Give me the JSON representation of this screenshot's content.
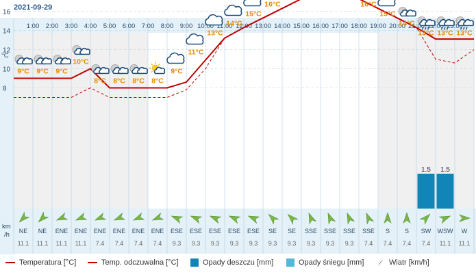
{
  "date": "2021-09-29",
  "chart_data": {
    "type": "line",
    "hours": [
      "1:00",
      "2:00",
      "3:00",
      "4:00",
      "5:00",
      "6:00",
      "7:00",
      "8:00",
      "9:00",
      "10:00",
      "11:00",
      "12:00",
      "13:00",
      "14:00",
      "15:00",
      "16:00",
      "17:00",
      "18:00",
      "19:00",
      "20:00",
      "21:00",
      "22:00",
      "23:00"
    ],
    "y_unit": "°C",
    "y_ticks": [
      8,
      10,
      12,
      14,
      16,
      18
    ],
    "ylim": [
      6.4,
      20.4
    ],
    "series": [
      {
        "name": "Temperatura [°C]",
        "color": "#c00000",
        "style": "solid",
        "x": [
          0,
          1,
          2,
          3,
          4,
          5,
          6,
          7,
          8,
          9,
          10,
          11,
          12,
          13,
          14,
          15,
          16,
          17,
          18,
          19,
          20,
          21,
          22,
          23,
          24
        ],
        "values": [
          9,
          9,
          9,
          9,
          10,
          8,
          8,
          8,
          8,
          8.6,
          10.9,
          13.2,
          14.3,
          15.3,
          16.3,
          17.3,
          18,
          18.1,
          17.3,
          16.3,
          15.3,
          14.3,
          13.1,
          13.1,
          13.1
        ]
      },
      {
        "name": "Temp. odczuwalna [°C]",
        "color": "#c00000",
        "style": "dashed",
        "x": [
          0,
          1,
          2,
          3,
          4,
          5,
          6,
          7,
          8,
          9,
          10,
          11,
          12,
          13,
          14,
          15,
          16,
          17,
          18,
          19,
          20,
          21,
          22,
          23,
          24
        ],
        "values": [
          7,
          7,
          7,
          7,
          8,
          7,
          7,
          7,
          7,
          7.8,
          10,
          13.2,
          14.3,
          15.3,
          16.3,
          17.3,
          18,
          18.1,
          17.3,
          16.3,
          15.3,
          14.3,
          11,
          10.6,
          12
        ]
      }
    ],
    "temp_labels": [
      "9°C",
      "9°C",
      "9°C",
      "10°C",
      "8°C",
      "8°C",
      "8°C",
      "8°C",
      "9°C",
      "11°C",
      "13°C",
      "14°C",
      "15°C",
      "16°C",
      "17°C",
      "18°C",
      "18°C",
      "17°C",
      "16°C",
      "15°C",
      "14°C",
      "13°C",
      "13°C",
      "13°C"
    ],
    "rain": [
      {
        "hour_index": 21,
        "value": 1.5
      },
      {
        "hour_index": 22,
        "value": 1.5
      }
    ],
    "rain_labels": [
      "1.5",
      "1.5"
    ],
    "wind_unit": "km\n/h",
    "wind_unit_top": "km",
    "wind_unit_bottom": "/h",
    "wind_dirs": [
      "NE",
      "NE",
      "ENE",
      "ENE",
      "ENE",
      "ENE",
      "ENE",
      "ENE",
      "ESE",
      "ESE",
      "ESE",
      "ESE",
      "ESE",
      "SE",
      "SE",
      "SSE",
      "SSE",
      "SSE",
      "SSE",
      "S",
      "S",
      "SW",
      "WSW",
      "W"
    ],
    "wind_speeds": [
      "11.1",
      "11.1",
      "11.1",
      "11.1",
      "7.4",
      "7.4",
      "7.4",
      "7.4",
      "9.3",
      "9.3",
      "9.3",
      "9.3",
      "9.3",
      "9.3",
      "9.3",
      "9.3",
      "9.3",
      "9.3",
      "7.4",
      "7.4",
      "7.4",
      "7.4",
      "11.1",
      "11.1"
    ],
    "icons": [
      "night-partly-cloudy",
      "night-partly-cloudy",
      "night-partly-cloudy",
      "night-partly-cloudy",
      "night-partly-cloudy",
      "night-partly-cloudy",
      "night-partly-cloudy",
      "sun-partly-cloudy",
      "cloudy",
      "cloudy",
      "cloudy",
      "cloudy",
      "cloudy",
      "cloudy",
      "cloudy",
      "cloudy",
      "cloudy",
      "cloudy",
      "cloudy",
      "cloudy",
      "night-cloudy",
      "night-rain",
      "night-rain",
      "night-rain"
    ],
    "colors": {
      "bg_panel": "#e4f1f8",
      "grid": "#b8cfe0",
      "temp": "#c00000",
      "rain": "#1185b8",
      "snow": "#55b8d8",
      "label": "#e68a00"
    }
  },
  "legend": {
    "temp": "Temperatura [°C]",
    "feels": "Temp. odczuwalna [°C]",
    "rain": "Opady deszczu [mm]",
    "snow": "Opady śniegu [mm]",
    "wind": "Wiatr [km/h]"
  }
}
